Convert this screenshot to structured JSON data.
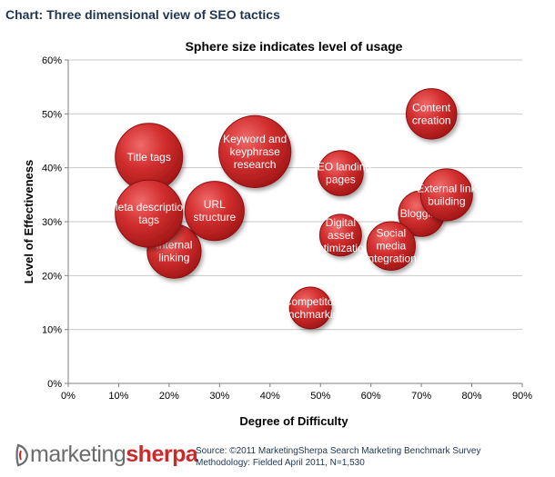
{
  "header": {
    "title": "Chart: Three dimensional view of SEO tactics"
  },
  "chart_data": {
    "type": "bubble",
    "title": "Sphere size indicates level of usage",
    "xlabel": "Degree of Difficulty",
    "ylabel": "Level of Effectiveness",
    "xlim": [
      0,
      90
    ],
    "ylim": [
      0,
      60
    ],
    "x_ticks": [
      "0%",
      "10%",
      "20%",
      "30%",
      "40%",
      "50%",
      "60%",
      "70%",
      "80%",
      "90%"
    ],
    "y_ticks": [
      "0%",
      "10%",
      "20%",
      "30%",
      "40%",
      "50%",
      "60%"
    ],
    "grid": "horizontal",
    "bubble_color": "#c62828",
    "points": [
      {
        "label": "Internal linking",
        "lines": [
          "Internal",
          "linking"
        ],
        "x": 21,
        "y": 24.5,
        "size": 0.8
      },
      {
        "label": "Title tags",
        "lines": [
          "Title tags"
        ],
        "x": 16,
        "y": 42,
        "size": 1.0
      },
      {
        "label": "Meta description tags",
        "lines": [
          "Meta description",
          "tags"
        ],
        "x": 16,
        "y": 31.5,
        "size": 1.0
      },
      {
        "label": "URL structure",
        "lines": [
          "URL",
          "structure"
        ],
        "x": 29,
        "y": 32,
        "size": 0.88
      },
      {
        "label": "Keyword and keyphrase research",
        "lines": [
          "Keyword and",
          "keyphrase",
          "research"
        ],
        "x": 37,
        "y": 43,
        "size": 1.07
      },
      {
        "label": "SEO landing pages",
        "lines": [
          "SEO landing",
          "pages"
        ],
        "x": 54,
        "y": 39,
        "size": 0.67
      },
      {
        "label": "Digital asset optimization",
        "lines": [
          "Digital",
          "asset",
          "optimization"
        ],
        "x": 54,
        "y": 27.5,
        "size": 0.62
      },
      {
        "label": "Competitor benchmarking",
        "lines": [
          "Competitor",
          "benchmarking"
        ],
        "x": 48,
        "y": 14,
        "size": 0.62
      },
      {
        "label": "Content creation",
        "lines": [
          "Content",
          "creation"
        ],
        "x": 72,
        "y": 50,
        "size": 0.75
      },
      {
        "label": "Blogging",
        "lines": [
          "Blogging"
        ],
        "x": 70,
        "y": 31.5,
        "size": 0.68
      },
      {
        "label": "Social media integration",
        "lines": [
          "Social",
          "media",
          "integration"
        ],
        "x": 64,
        "y": 25.5,
        "size": 0.72
      },
      {
        "label": "External link building",
        "lines": [
          "External link",
          "building"
        ],
        "x": 75,
        "y": 35,
        "size": 0.77
      }
    ]
  },
  "footer": {
    "logo_part1": "marketing",
    "logo_part2": "sherpa",
    "source": "Source: ©2011 MarketingSherpa Search Marketing Benchmark Survey",
    "methodology": "Methodology: Fielded April 2011, N=1,530"
  }
}
